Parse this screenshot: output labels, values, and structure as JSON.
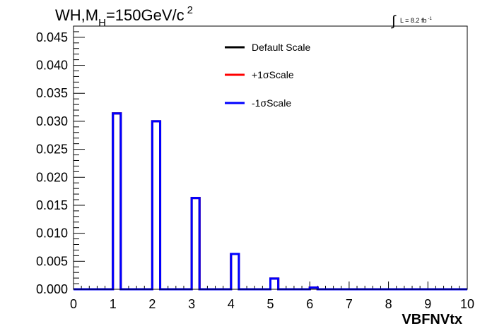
{
  "chart_data": {
    "type": "line",
    "title_main": "WH,M",
    "title_sub": "H",
    "title_rest": "=150GeV/c",
    "title_sup": "2",
    "lumi_prefix": "L = 8.2 fb",
    "lumi_sup": "-1",
    "xlabel": "VBFNVtx",
    "ylabel": "",
    "xlim": [
      0,
      10
    ],
    "ylim": [
      0,
      0.047
    ],
    "x_ticks": [
      "0",
      "1",
      "2",
      "3",
      "4",
      "5",
      "6",
      "7",
      "8",
      "9",
      "10"
    ],
    "y_ticks": [
      "0.000",
      "0.005",
      "0.010",
      "0.015",
      "0.020",
      "0.025",
      "0.030",
      "0.035",
      "0.040",
      "0.045"
    ],
    "bin_width": 0.2,
    "series": [
      {
        "name": "Default Scale",
        "color": "#000000",
        "bins": [
          [
            1.0,
            0.0314
          ],
          [
            2.0,
            0.03
          ],
          [
            3.0,
            0.0163
          ],
          [
            4.0,
            0.0063
          ],
          [
            5.0,
            0.0019
          ],
          [
            6.0,
            0.0003
          ]
        ]
      },
      {
        "name": "+1σScale",
        "color": "#ff0000",
        "bins": [
          [
            1.0,
            0.0314
          ],
          [
            2.0,
            0.03
          ],
          [
            3.0,
            0.0163
          ],
          [
            4.0,
            0.0063
          ],
          [
            5.0,
            0.0019
          ],
          [
            6.0,
            0.0003
          ]
        ]
      },
      {
        "name": "-1σScale",
        "color": "#0000ff",
        "bins": [
          [
            1.0,
            0.0314
          ],
          [
            2.0,
            0.03
          ],
          [
            3.0,
            0.0163
          ],
          [
            4.0,
            0.0063
          ],
          [
            5.0,
            0.0019
          ],
          [
            6.0,
            0.0003
          ]
        ]
      }
    ],
    "legend_position": "top-center",
    "grid": false
  }
}
